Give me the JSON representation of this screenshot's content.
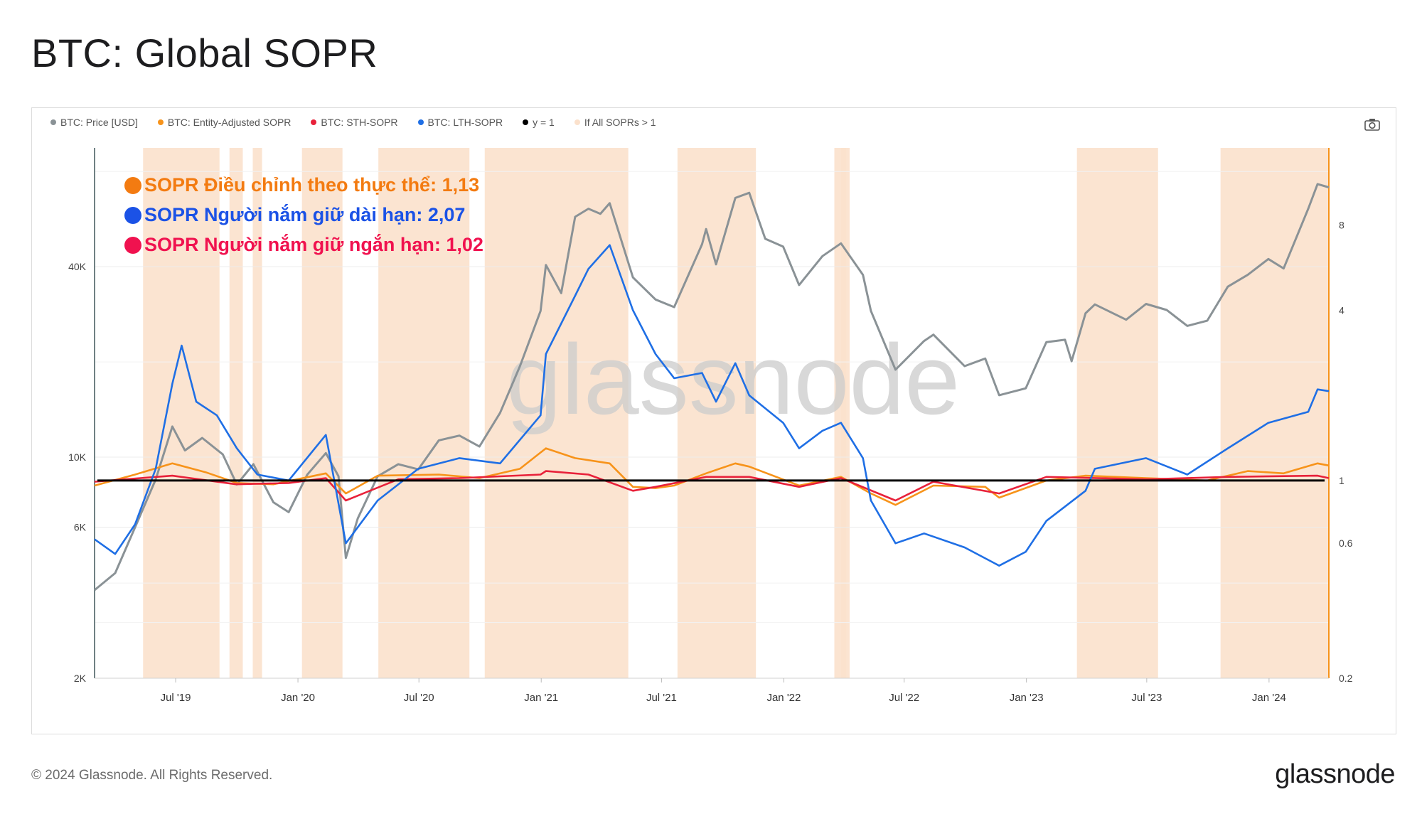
{
  "page": {
    "title": "BTC: Global SOPR"
  },
  "legend": {
    "items": [
      {
        "label": "BTC: Price [USD]",
        "color": "#8a9296"
      },
      {
        "label": "BTC: Entity-Adjusted SOPR",
        "color": "#f7931a"
      },
      {
        "label": "BTC: STH-SOPR",
        "color": "#e8213a"
      },
      {
        "label": "BTC: LTH-SOPR",
        "color": "#1f6fe5"
      },
      {
        "label": "y = 1",
        "color": "#000000"
      },
      {
        "label": "If All SOPRs > 1",
        "color": "#fbe1cc"
      }
    ]
  },
  "annotations": [
    {
      "text": "SOPR Điều chỉnh theo thực thể: 1,13",
      "color": "#f37b11"
    },
    {
      "text": "SOPR Người nắm giữ dài hạn: 2,07",
      "color": "#1b52e6"
    },
    {
      "text": "SOPR Người nắm giữ ngắn hạn: 1,02",
      "color": "#f0124f"
    }
  ],
  "watermark": "glassnode",
  "footer": {
    "copyright": "© 2024 Glassnode. All Rights Reserved.",
    "logo": "glassnode"
  },
  "chart_data": {
    "type": "line",
    "title": "BTC: Global SOPR",
    "x_tick_labels": [
      "Jul '19",
      "Jan '20",
      "Jul '20",
      "Jan '21",
      "Jul '21",
      "Jan '22",
      "Jul '22",
      "Jan '23",
      "Jul '23",
      "Jan '24"
    ],
    "y_left_scale": "log",
    "y_left_ticks": [
      2000,
      6000,
      10000,
      40000
    ],
    "y_left_tick_labels": [
      "2K",
      "6K",
      "10K",
      "40K"
    ],
    "y_left_range": [
      2000,
      95000
    ],
    "y_right_scale": "log",
    "y_right_ticks": [
      0.2,
      0.6,
      1,
      4,
      8
    ],
    "y_right_tick_labels": [
      "0.2",
      "0.6",
      "1",
      "4",
      "8"
    ],
    "y_right_range": [
      0.2,
      15
    ],
    "x_range": [
      "2019-03-01",
      "2024-03-31"
    ],
    "series": [
      {
        "name": "BTC: Price [USD]",
        "axis": "left",
        "color": "#8a9296",
        "points": [
          [
            "2019-03-01",
            3800
          ],
          [
            "2019-04-01",
            4300
          ],
          [
            "2019-05-01",
            6000
          ],
          [
            "2019-06-01",
            8500
          ],
          [
            "2019-06-26",
            12500
          ],
          [
            "2019-07-15",
            10500
          ],
          [
            "2019-08-10",
            11500
          ],
          [
            "2019-09-10",
            10200
          ],
          [
            "2019-10-01",
            8200
          ],
          [
            "2019-10-26",
            9500
          ],
          [
            "2019-11-25",
            7200
          ],
          [
            "2019-12-18",
            6700
          ],
          [
            "2020-01-15",
            8800
          ],
          [
            "2020-02-12",
            10300
          ],
          [
            "2020-03-02",
            8700
          ],
          [
            "2020-03-13",
            4800
          ],
          [
            "2020-03-31",
            6400
          ],
          [
            "2020-04-30",
            8700
          ],
          [
            "2020-05-31",
            9500
          ],
          [
            "2020-06-30",
            9150
          ],
          [
            "2020-07-31",
            11300
          ],
          [
            "2020-08-31",
            11700
          ],
          [
            "2020-09-30",
            10800
          ],
          [
            "2020-10-31",
            13800
          ],
          [
            "2020-11-30",
            19400
          ],
          [
            "2020-12-31",
            29000
          ],
          [
            "2021-01-08",
            40500
          ],
          [
            "2021-01-31",
            33000
          ],
          [
            "2021-02-21",
            57500
          ],
          [
            "2021-03-13",
            61000
          ],
          [
            "2021-03-31",
            58800
          ],
          [
            "2021-04-14",
            63500
          ],
          [
            "2021-05-19",
            37000
          ],
          [
            "2021-06-22",
            31500
          ],
          [
            "2021-07-20",
            29800
          ],
          [
            "2021-08-31",
            47100
          ],
          [
            "2021-09-06",
            52600
          ],
          [
            "2021-09-21",
            40700
          ],
          [
            "2021-10-20",
            66000
          ],
          [
            "2021-11-10",
            68500
          ],
          [
            "2021-12-04",
            49000
          ],
          [
            "2021-12-31",
            46300
          ],
          [
            "2022-01-24",
            35000
          ],
          [
            "2022-02-28",
            43200
          ],
          [
            "2022-03-28",
            47400
          ],
          [
            "2022-04-30",
            37700
          ],
          [
            "2022-05-12",
            29000
          ],
          [
            "2022-06-18",
            18900
          ],
          [
            "2022-07-31",
            23300
          ],
          [
            "2022-08-14",
            24400
          ],
          [
            "2022-09-30",
            19400
          ],
          [
            "2022-10-31",
            20500
          ],
          [
            "2022-11-21",
            15700
          ],
          [
            "2022-12-31",
            16500
          ],
          [
            "2023-01-31",
            23100
          ],
          [
            "2023-02-28",
            23500
          ],
          [
            "2023-03-10",
            20100
          ],
          [
            "2023-03-31",
            28500
          ],
          [
            "2023-04-14",
            30400
          ],
          [
            "2023-05-31",
            27200
          ],
          [
            "2023-06-30",
            30500
          ],
          [
            "2023-07-31",
            29200
          ],
          [
            "2023-08-31",
            26000
          ],
          [
            "2023-09-30",
            27000
          ],
          [
            "2023-10-31",
            34600
          ],
          [
            "2023-11-30",
            37700
          ],
          [
            "2023-12-31",
            42300
          ],
          [
            "2024-01-23",
            39500
          ],
          [
            "2024-02-29",
            61000
          ],
          [
            "2024-03-14",
            73000
          ],
          [
            "2024-03-31",
            71300
          ]
        ]
      },
      {
        "name": "BTC: Entity-Adjusted SOPR",
        "axis": "right",
        "color": "#f7931a",
        "points": [
          [
            "2019-03-01",
            0.96
          ],
          [
            "2019-05-01",
            1.05
          ],
          [
            "2019-06-26",
            1.15
          ],
          [
            "2019-08-15",
            1.07
          ],
          [
            "2019-10-01",
            0.98
          ],
          [
            "2019-11-25",
            0.97
          ],
          [
            "2020-02-12",
            1.06
          ],
          [
            "2020-03-13",
            0.9
          ],
          [
            "2020-04-30",
            1.04
          ],
          [
            "2020-07-31",
            1.05
          ],
          [
            "2020-09-30",
            1.02
          ],
          [
            "2020-11-30",
            1.1
          ],
          [
            "2021-01-08",
            1.3
          ],
          [
            "2021-02-21",
            1.2
          ],
          [
            "2021-04-14",
            1.15
          ],
          [
            "2021-05-19",
            0.95
          ],
          [
            "2021-06-22",
            0.94
          ],
          [
            "2021-07-20",
            0.96
          ],
          [
            "2021-09-06",
            1.06
          ],
          [
            "2021-10-20",
            1.15
          ],
          [
            "2021-11-10",
            1.12
          ],
          [
            "2022-01-24",
            0.96
          ],
          [
            "2022-03-28",
            1.03
          ],
          [
            "2022-05-12",
            0.9
          ],
          [
            "2022-06-18",
            0.82
          ],
          [
            "2022-08-14",
            0.96
          ],
          [
            "2022-10-31",
            0.95
          ],
          [
            "2022-11-21",
            0.87
          ],
          [
            "2023-01-31",
            1.0
          ],
          [
            "2023-03-31",
            1.04
          ],
          [
            "2023-06-30",
            1.02
          ],
          [
            "2023-09-30",
            1.0
          ],
          [
            "2023-11-30",
            1.08
          ],
          [
            "2024-01-23",
            1.06
          ],
          [
            "2024-03-14",
            1.15
          ],
          [
            "2024-03-31",
            1.13
          ]
        ]
      },
      {
        "name": "BTC: STH-SOPR",
        "axis": "right",
        "color": "#e8213a",
        "points": [
          [
            "2019-03-01",
            0.99
          ],
          [
            "2019-06-26",
            1.04
          ],
          [
            "2019-09-30",
            0.97
          ],
          [
            "2019-12-18",
            0.98
          ],
          [
            "2020-02-12",
            1.02
          ],
          [
            "2020-03-13",
            0.85
          ],
          [
            "2020-05-31",
            1.01
          ],
          [
            "2020-08-31",
            1.02
          ],
          [
            "2020-12-31",
            1.05
          ],
          [
            "2021-01-08",
            1.08
          ],
          [
            "2021-03-13",
            1.05
          ],
          [
            "2021-05-19",
            0.92
          ],
          [
            "2021-06-22",
            0.95
          ],
          [
            "2021-09-06",
            1.03
          ],
          [
            "2021-11-10",
            1.03
          ],
          [
            "2022-01-24",
            0.95
          ],
          [
            "2022-03-28",
            1.02
          ],
          [
            "2022-06-18",
            0.85
          ],
          [
            "2022-08-14",
            0.99
          ],
          [
            "2022-11-21",
            0.9
          ],
          [
            "2023-01-31",
            1.03
          ],
          [
            "2023-06-30",
            1.01
          ],
          [
            "2023-10-31",
            1.03
          ],
          [
            "2024-03-14",
            1.04
          ],
          [
            "2024-03-31",
            1.02
          ]
        ]
      },
      {
        "name": "BTC: LTH-SOPR",
        "axis": "right",
        "color": "#1f6fe5",
        "points": [
          [
            "2019-03-01",
            0.62
          ],
          [
            "2019-04-01",
            0.55
          ],
          [
            "2019-05-01",
            0.7
          ],
          [
            "2019-06-01",
            1.1
          ],
          [
            "2019-06-26",
            2.2
          ],
          [
            "2019-07-10",
            3.0
          ],
          [
            "2019-08-01",
            1.9
          ],
          [
            "2019-09-01",
            1.7
          ],
          [
            "2019-10-01",
            1.3
          ],
          [
            "2019-11-01",
            1.05
          ],
          [
            "2019-12-18",
            1.0
          ],
          [
            "2020-02-12",
            1.45
          ],
          [
            "2020-03-13",
            0.6
          ],
          [
            "2020-04-30",
            0.85
          ],
          [
            "2020-06-30",
            1.1
          ],
          [
            "2020-08-31",
            1.2
          ],
          [
            "2020-10-31",
            1.15
          ],
          [
            "2020-12-31",
            1.7
          ],
          [
            "2021-01-08",
            2.8
          ],
          [
            "2021-02-21",
            4.5
          ],
          [
            "2021-03-13",
            5.6
          ],
          [
            "2021-04-14",
            6.8
          ],
          [
            "2021-05-19",
            4.0
          ],
          [
            "2021-06-22",
            2.8
          ],
          [
            "2021-07-20",
            2.3
          ],
          [
            "2021-08-31",
            2.4
          ],
          [
            "2021-09-21",
            1.9
          ],
          [
            "2021-10-20",
            2.6
          ],
          [
            "2021-11-10",
            2.0
          ],
          [
            "2021-12-31",
            1.6
          ],
          [
            "2022-01-24",
            1.3
          ],
          [
            "2022-02-28",
            1.5
          ],
          [
            "2022-03-28",
            1.6
          ],
          [
            "2022-04-30",
            1.2
          ],
          [
            "2022-05-12",
            0.85
          ],
          [
            "2022-06-18",
            0.6
          ],
          [
            "2022-07-31",
            0.65
          ],
          [
            "2022-09-30",
            0.58
          ],
          [
            "2022-11-21",
            0.5
          ],
          [
            "2022-12-31",
            0.56
          ],
          [
            "2023-01-31",
            0.72
          ],
          [
            "2023-03-31",
            0.92
          ],
          [
            "2023-04-14",
            1.1
          ],
          [
            "2023-06-30",
            1.2
          ],
          [
            "2023-08-31",
            1.05
          ],
          [
            "2023-10-31",
            1.3
          ],
          [
            "2023-12-31",
            1.6
          ],
          [
            "2024-02-29",
            1.75
          ],
          [
            "2024-03-14",
            2.1
          ],
          [
            "2024-03-31",
            2.07
          ]
        ]
      },
      {
        "name": "y = 1",
        "axis": "right",
        "color": "#000000",
        "constant": 1
      }
    ],
    "shaded_periods": {
      "name": "If All SOPRs > 1",
      "color": "#fbe1cc",
      "ranges": [
        [
          "2019-05-13",
          "2019-09-05"
        ],
        [
          "2019-09-20",
          "2019-10-10"
        ],
        [
          "2019-10-25",
          "2019-11-08"
        ],
        [
          "2020-01-07",
          "2020-03-08"
        ],
        [
          "2020-05-01",
          "2020-09-15"
        ],
        [
          "2020-10-08",
          "2021-05-12"
        ],
        [
          "2021-07-25",
          "2021-11-20"
        ],
        [
          "2022-03-18",
          "2022-04-05"
        ],
        [
          "2022-03-28",
          "2022-04-10"
        ],
        [
          "2023-03-18",
          "2023-07-18"
        ],
        [
          "2023-10-20",
          "2024-03-31"
        ]
      ]
    }
  }
}
